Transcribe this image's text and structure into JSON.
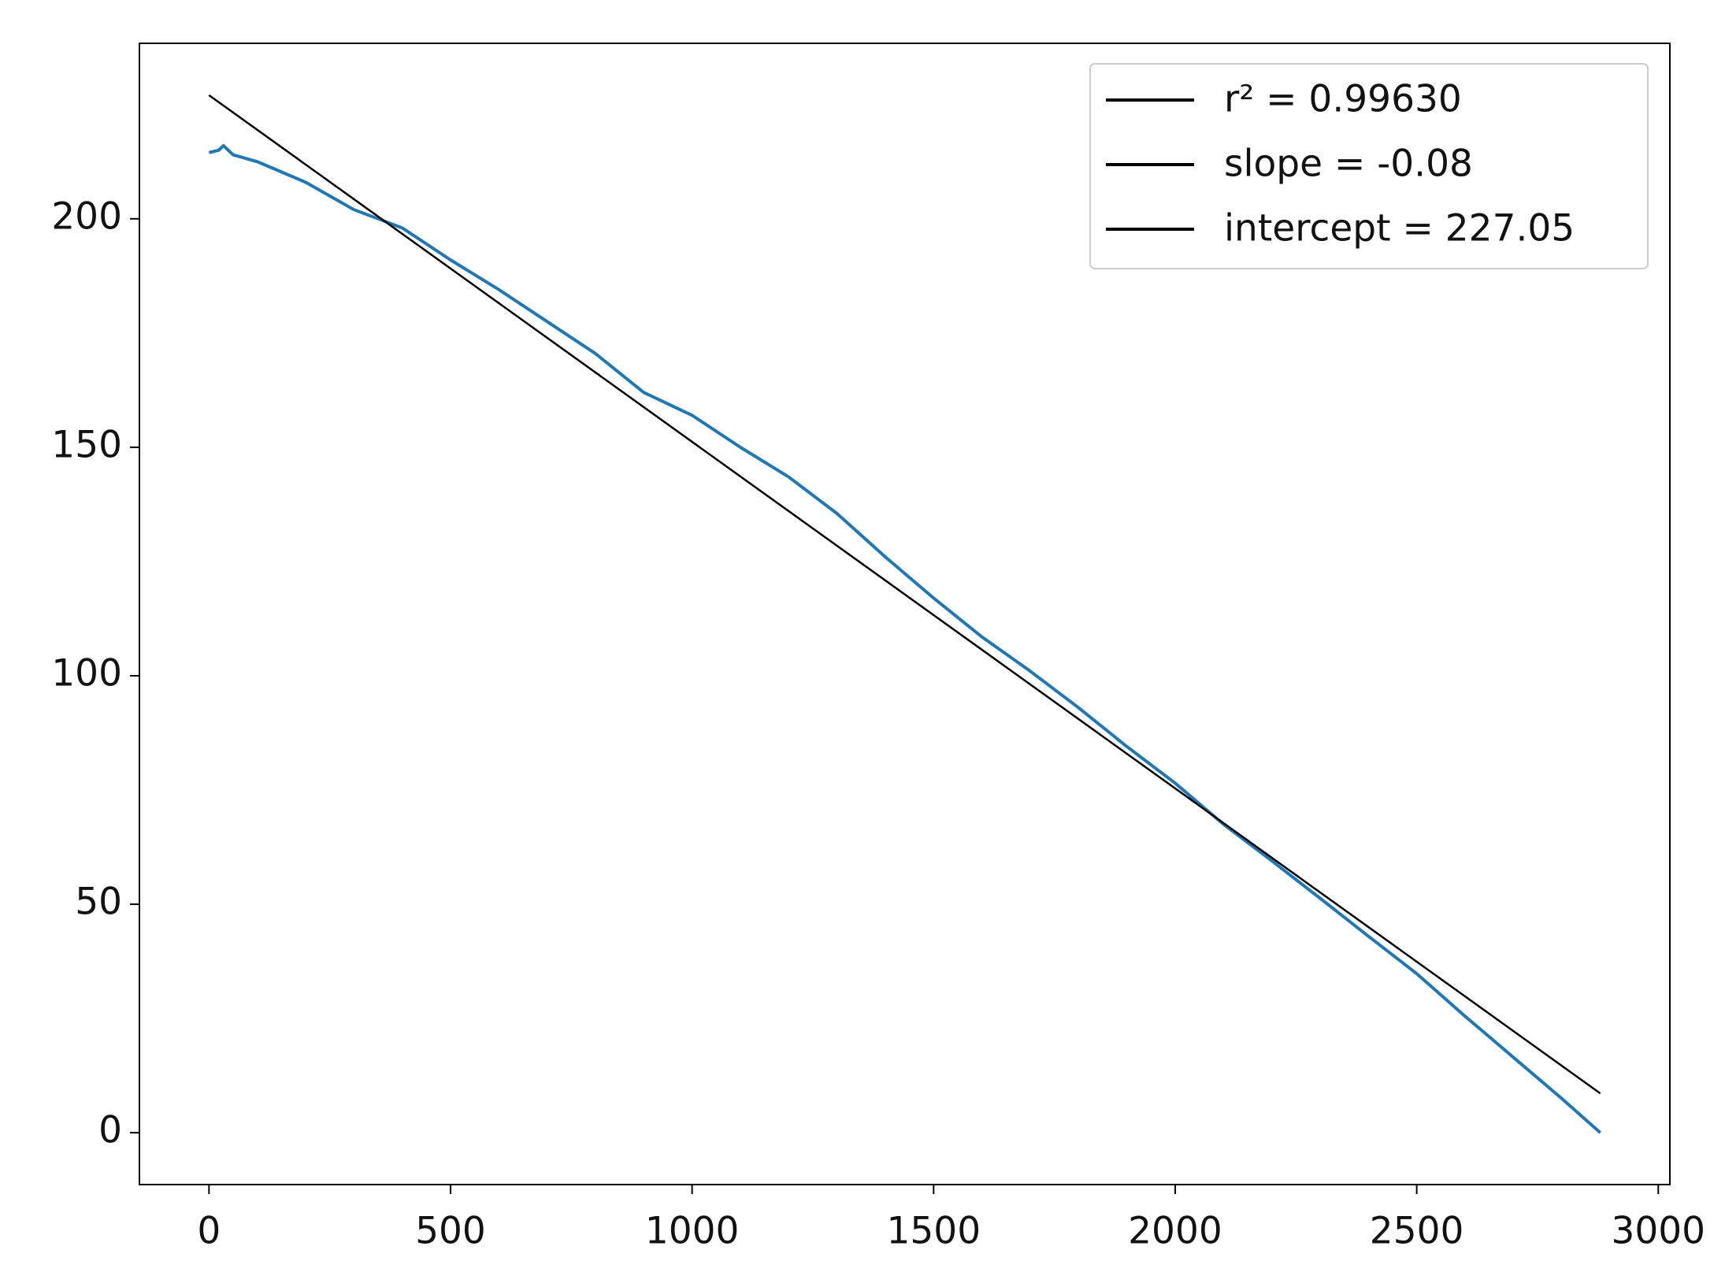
{
  "chart_data": {
    "type": "line",
    "series": [
      {
        "color": "#1f77b4",
        "x": [
          0,
          20,
          30,
          50,
          100,
          200,
          300,
          400,
          500,
          600,
          700,
          800,
          900,
          1000,
          1100,
          1200,
          1300,
          1400,
          1500,
          1600,
          1700,
          1800,
          1900,
          2000,
          2100,
          2200,
          2300,
          2400,
          2500,
          2600,
          2700,
          2800,
          2880
        ],
        "values": [
          214.5,
          215,
          216,
          214,
          212.5,
          208,
          202,
          198,
          191,
          184.5,
          177.5,
          170.5,
          162,
          157,
          150,
          143.5,
          135.5,
          126,
          117,
          108.5,
          101,
          93,
          84.5,
          76.5,
          67.5,
          59.5,
          51.3,
          43,
          34.8,
          25.5,
          16.5,
          7.5,
          0
        ]
      },
      {
        "color": "#000000",
        "x": [
          0,
          2880
        ],
        "values": [
          227.05,
          8.6
        ]
      }
    ],
    "legend": {
      "position": "upper right",
      "entries": [
        {
          "label": "r² = 0.99630",
          "color": "#000000"
        },
        {
          "label": "slope = -0.08",
          "color": "#000000"
        },
        {
          "label": "intercept = 227.05",
          "color": "#000000"
        }
      ]
    },
    "xlim": [
      -144,
      3024
    ],
    "ylim": [
      -11.35,
      238.4
    ],
    "xticks": [
      0,
      500,
      1000,
      1500,
      2000,
      2500,
      3000
    ],
    "yticks": [
      0,
      50,
      100,
      150,
      200
    ],
    "grid": false
  }
}
